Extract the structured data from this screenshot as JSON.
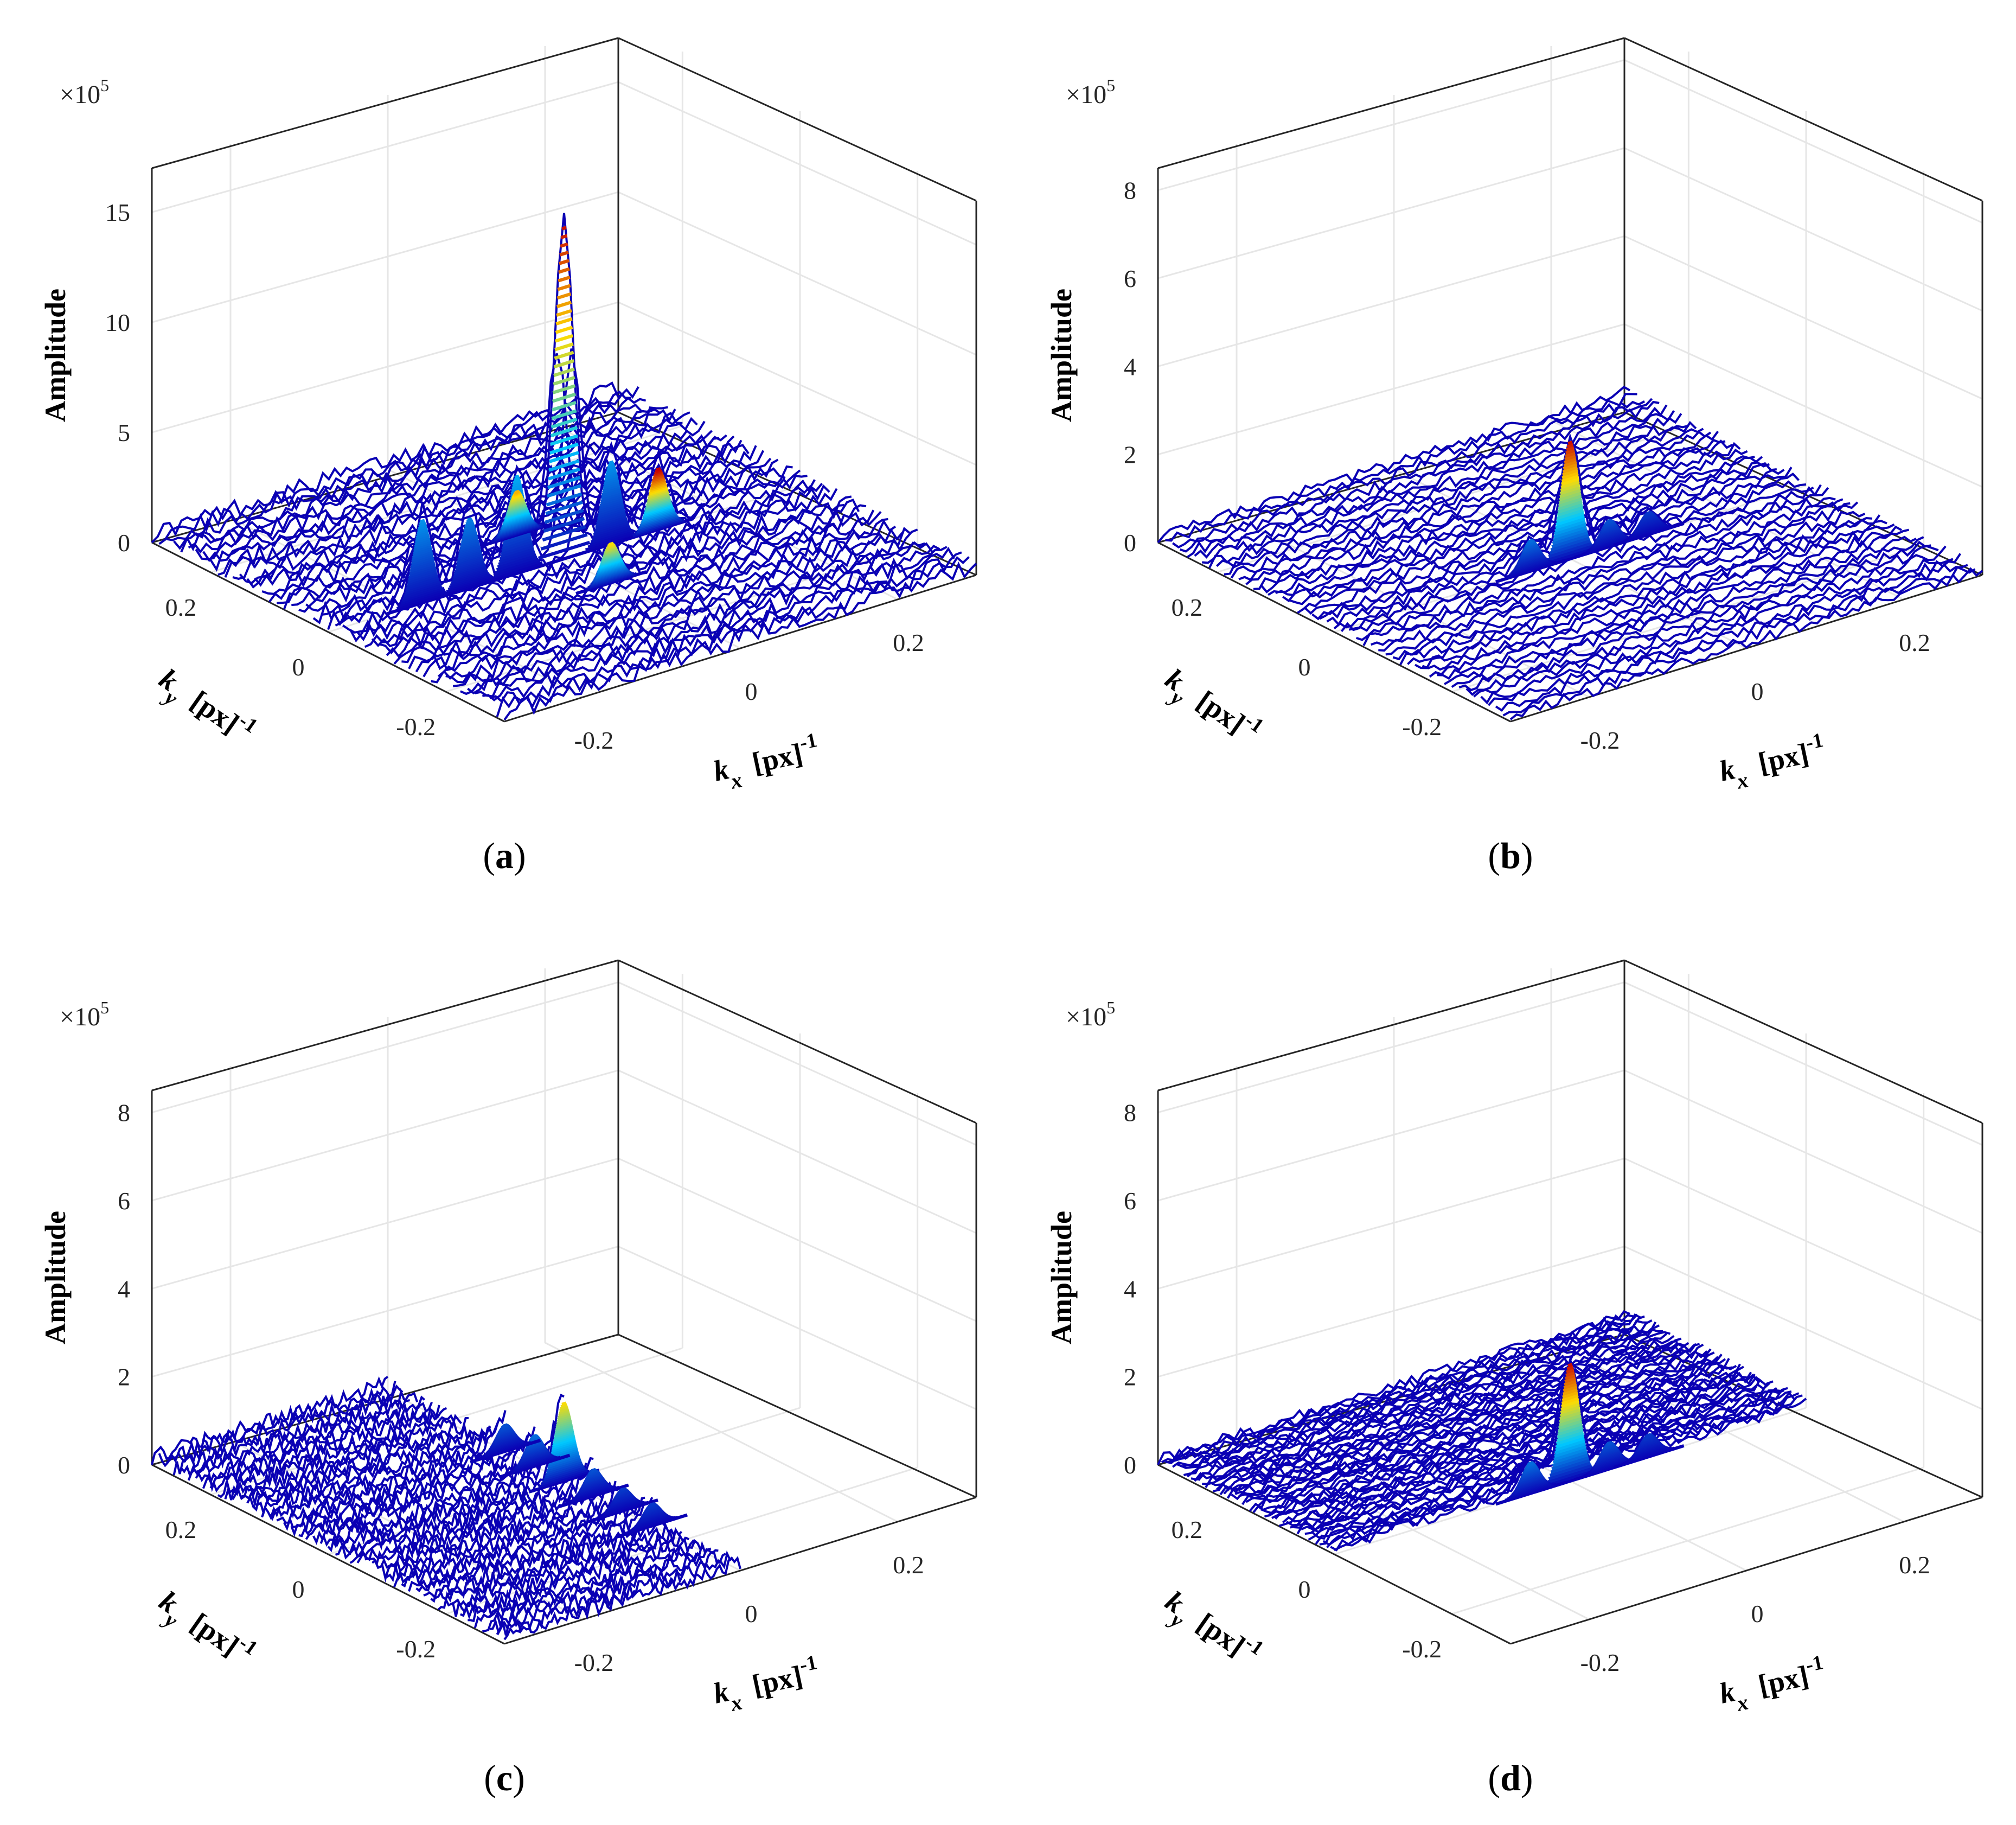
{
  "figure": {
    "panels": [
      {
        "id": "a",
        "caption_letter": "a",
        "z_multiplier_base": "×10",
        "z_multiplier_exp": "5",
        "z_label": "Amplitude",
        "x_label_base": "k",
        "x_label_sub": "x",
        "y_label_base": "k",
        "y_label_sub": "y",
        "unit_base": "[px]",
        "unit_exp": "-1"
      },
      {
        "id": "b",
        "caption_letter": "b",
        "z_multiplier_base": "×10",
        "z_multiplier_exp": "5",
        "z_label": "Amplitude",
        "x_label_base": "k",
        "x_label_sub": "x",
        "y_label_base": "k",
        "y_label_sub": "y",
        "unit_base": "[px]",
        "unit_exp": "-1"
      },
      {
        "id": "c",
        "caption_letter": "c",
        "z_multiplier_base": "×10",
        "z_multiplier_exp": "5",
        "z_label": "Amplitude",
        "x_label_base": "k",
        "x_label_sub": "x",
        "y_label_base": "k",
        "y_label_sub": "y",
        "unit_base": "[px]",
        "unit_exp": "-1"
      },
      {
        "id": "d",
        "caption_letter": "d",
        "z_multiplier_base": "×10",
        "z_multiplier_exp": "5",
        "z_label": "Amplitude",
        "x_label_base": "k",
        "x_label_sub": "x",
        "y_label_base": "k",
        "y_label_sub": "y",
        "unit_base": "[px]",
        "unit_exp": "-1"
      }
    ]
  },
  "colors": {
    "surface_low": "#0a00b4",
    "surface_mid": "#00c8ff",
    "surface_high": "#ffdc00",
    "surface_peak": "#c80000",
    "axes": "#262626",
    "grid": "#e6e6e6"
  },
  "chart_data": [
    {
      "type": "surface3d",
      "panel": "a",
      "xlabel": "kx [px]^-1",
      "ylabel": "ky [px]^-1",
      "zlabel": "Amplitude",
      "z_scale": "×10^5",
      "xlim": [
        -0.3,
        0.3
      ],
      "ylim": [
        -0.3,
        0.3
      ],
      "zlim": [
        0,
        17
      ],
      "x_ticks": [
        -0.2,
        0,
        0.2
      ],
      "y_ticks": [
        -0.2,
        0,
        0.2
      ],
      "z_ticks": [
        0,
        5,
        10,
        15
      ],
      "x_domain": [
        -0.3,
        0.3
      ],
      "y_domain": [
        -0.3,
        0.3
      ],
      "noise_level": 0.8,
      "peaks": [
        {
          "kx": 0.0,
          "ky": 0.0,
          "amplitude": 15.4
        },
        {
          "kx": -0.06,
          "ky": 0.0,
          "amplitude": 4.5
        },
        {
          "kx": -0.12,
          "ky": 0.0,
          "amplitude": 3.2
        },
        {
          "kx": -0.18,
          "ky": 0.0,
          "amplitude": 3.8
        },
        {
          "kx": 0.06,
          "ky": 0.0,
          "amplitude": 3.8
        },
        {
          "kx": 0.12,
          "ky": 0.0,
          "amplitude": 2.8
        },
        {
          "kx": 0.0,
          "ky": 0.08,
          "amplitude": 2.0
        },
        {
          "kx": 0.0,
          "ky": -0.08,
          "amplitude": 1.8
        }
      ]
    },
    {
      "type": "surface3d",
      "panel": "b",
      "xlabel": "kx [px]^-1",
      "ylabel": "ky [px]^-1",
      "zlabel": "Amplitude",
      "z_scale": "×10^5",
      "xlim": [
        -0.3,
        0.3
      ],
      "ylim": [
        -0.3,
        0.3
      ],
      "zlim": [
        0,
        8.5
      ],
      "x_ticks": [
        -0.2,
        0,
        0.2
      ],
      "y_ticks": [
        -0.2,
        0,
        0.2
      ],
      "z_ticks": [
        0,
        2,
        4,
        6,
        8
      ],
      "x_domain": [
        -0.3,
        0.3
      ],
      "y_domain": [
        -0.3,
        0.3
      ],
      "noise_level": 0.25,
      "peaks": [
        {
          "kx": 0.0,
          "ky": 0.0,
          "amplitude": 2.7
        },
        {
          "kx": -0.05,
          "ky": 0.0,
          "amplitude": 0.7
        },
        {
          "kx": 0.05,
          "ky": 0.0,
          "amplitude": 0.6
        },
        {
          "kx": 0.1,
          "ky": 0.0,
          "amplitude": 0.5
        }
      ]
    },
    {
      "type": "surface3d",
      "panel": "c",
      "xlabel": "kx [px]^-1",
      "ylabel": "ky [px]^-1",
      "zlabel": "Amplitude",
      "z_scale": "×10^5",
      "xlim": [
        -0.3,
        0.3
      ],
      "ylim": [
        -0.3,
        0.3
      ],
      "zlim": [
        0,
        8.5
      ],
      "x_ticks": [
        -0.2,
        0,
        0.2
      ],
      "y_ticks": [
        -0.2,
        0,
        0.2
      ],
      "z_ticks": [
        0,
        2,
        4,
        6,
        8
      ],
      "x_domain": [
        -0.3,
        0.0
      ],
      "y_domain": [
        -0.3,
        0.3
      ],
      "noise_level": 0.35,
      "peaks": [
        {
          "kx": 0.0,
          "ky": 0.0,
          "amplitude": 1.8
        },
        {
          "kx": 0.0,
          "ky": 0.05,
          "amplitude": 0.7
        },
        {
          "kx": 0.0,
          "ky": 0.1,
          "amplitude": 0.6
        },
        {
          "kx": 0.0,
          "ky": -0.05,
          "amplitude": 0.6
        },
        {
          "kx": 0.0,
          "ky": -0.1,
          "amplitude": 0.5
        },
        {
          "kx": 0.0,
          "ky": -0.15,
          "amplitude": 0.5
        }
      ]
    },
    {
      "type": "surface3d",
      "panel": "d",
      "xlabel": "kx [px]^-1",
      "ylabel": "ky [px]^-1",
      "zlabel": "Amplitude",
      "z_scale": "×10^5",
      "xlim": [
        -0.3,
        0.3
      ],
      "ylim": [
        -0.3,
        0.3
      ],
      "zlim": [
        0,
        8.5
      ],
      "x_ticks": [
        -0.2,
        0,
        0.2
      ],
      "y_ticks": [
        -0.2,
        0,
        0.2
      ],
      "z_ticks": [
        0,
        2,
        4,
        6,
        8
      ],
      "x_domain": [
        -0.3,
        0.3
      ],
      "y_domain": [
        0.0,
        0.3
      ],
      "noise_level": 0.25,
      "peaks": [
        {
          "kx": 0.0,
          "ky": 0.0,
          "amplitude": 2.7
        },
        {
          "kx": -0.05,
          "ky": 0.0,
          "amplitude": 0.7
        },
        {
          "kx": 0.05,
          "ky": 0.0,
          "amplitude": 0.6
        },
        {
          "kx": 0.1,
          "ky": 0.0,
          "amplitude": 0.5
        }
      ]
    }
  ]
}
